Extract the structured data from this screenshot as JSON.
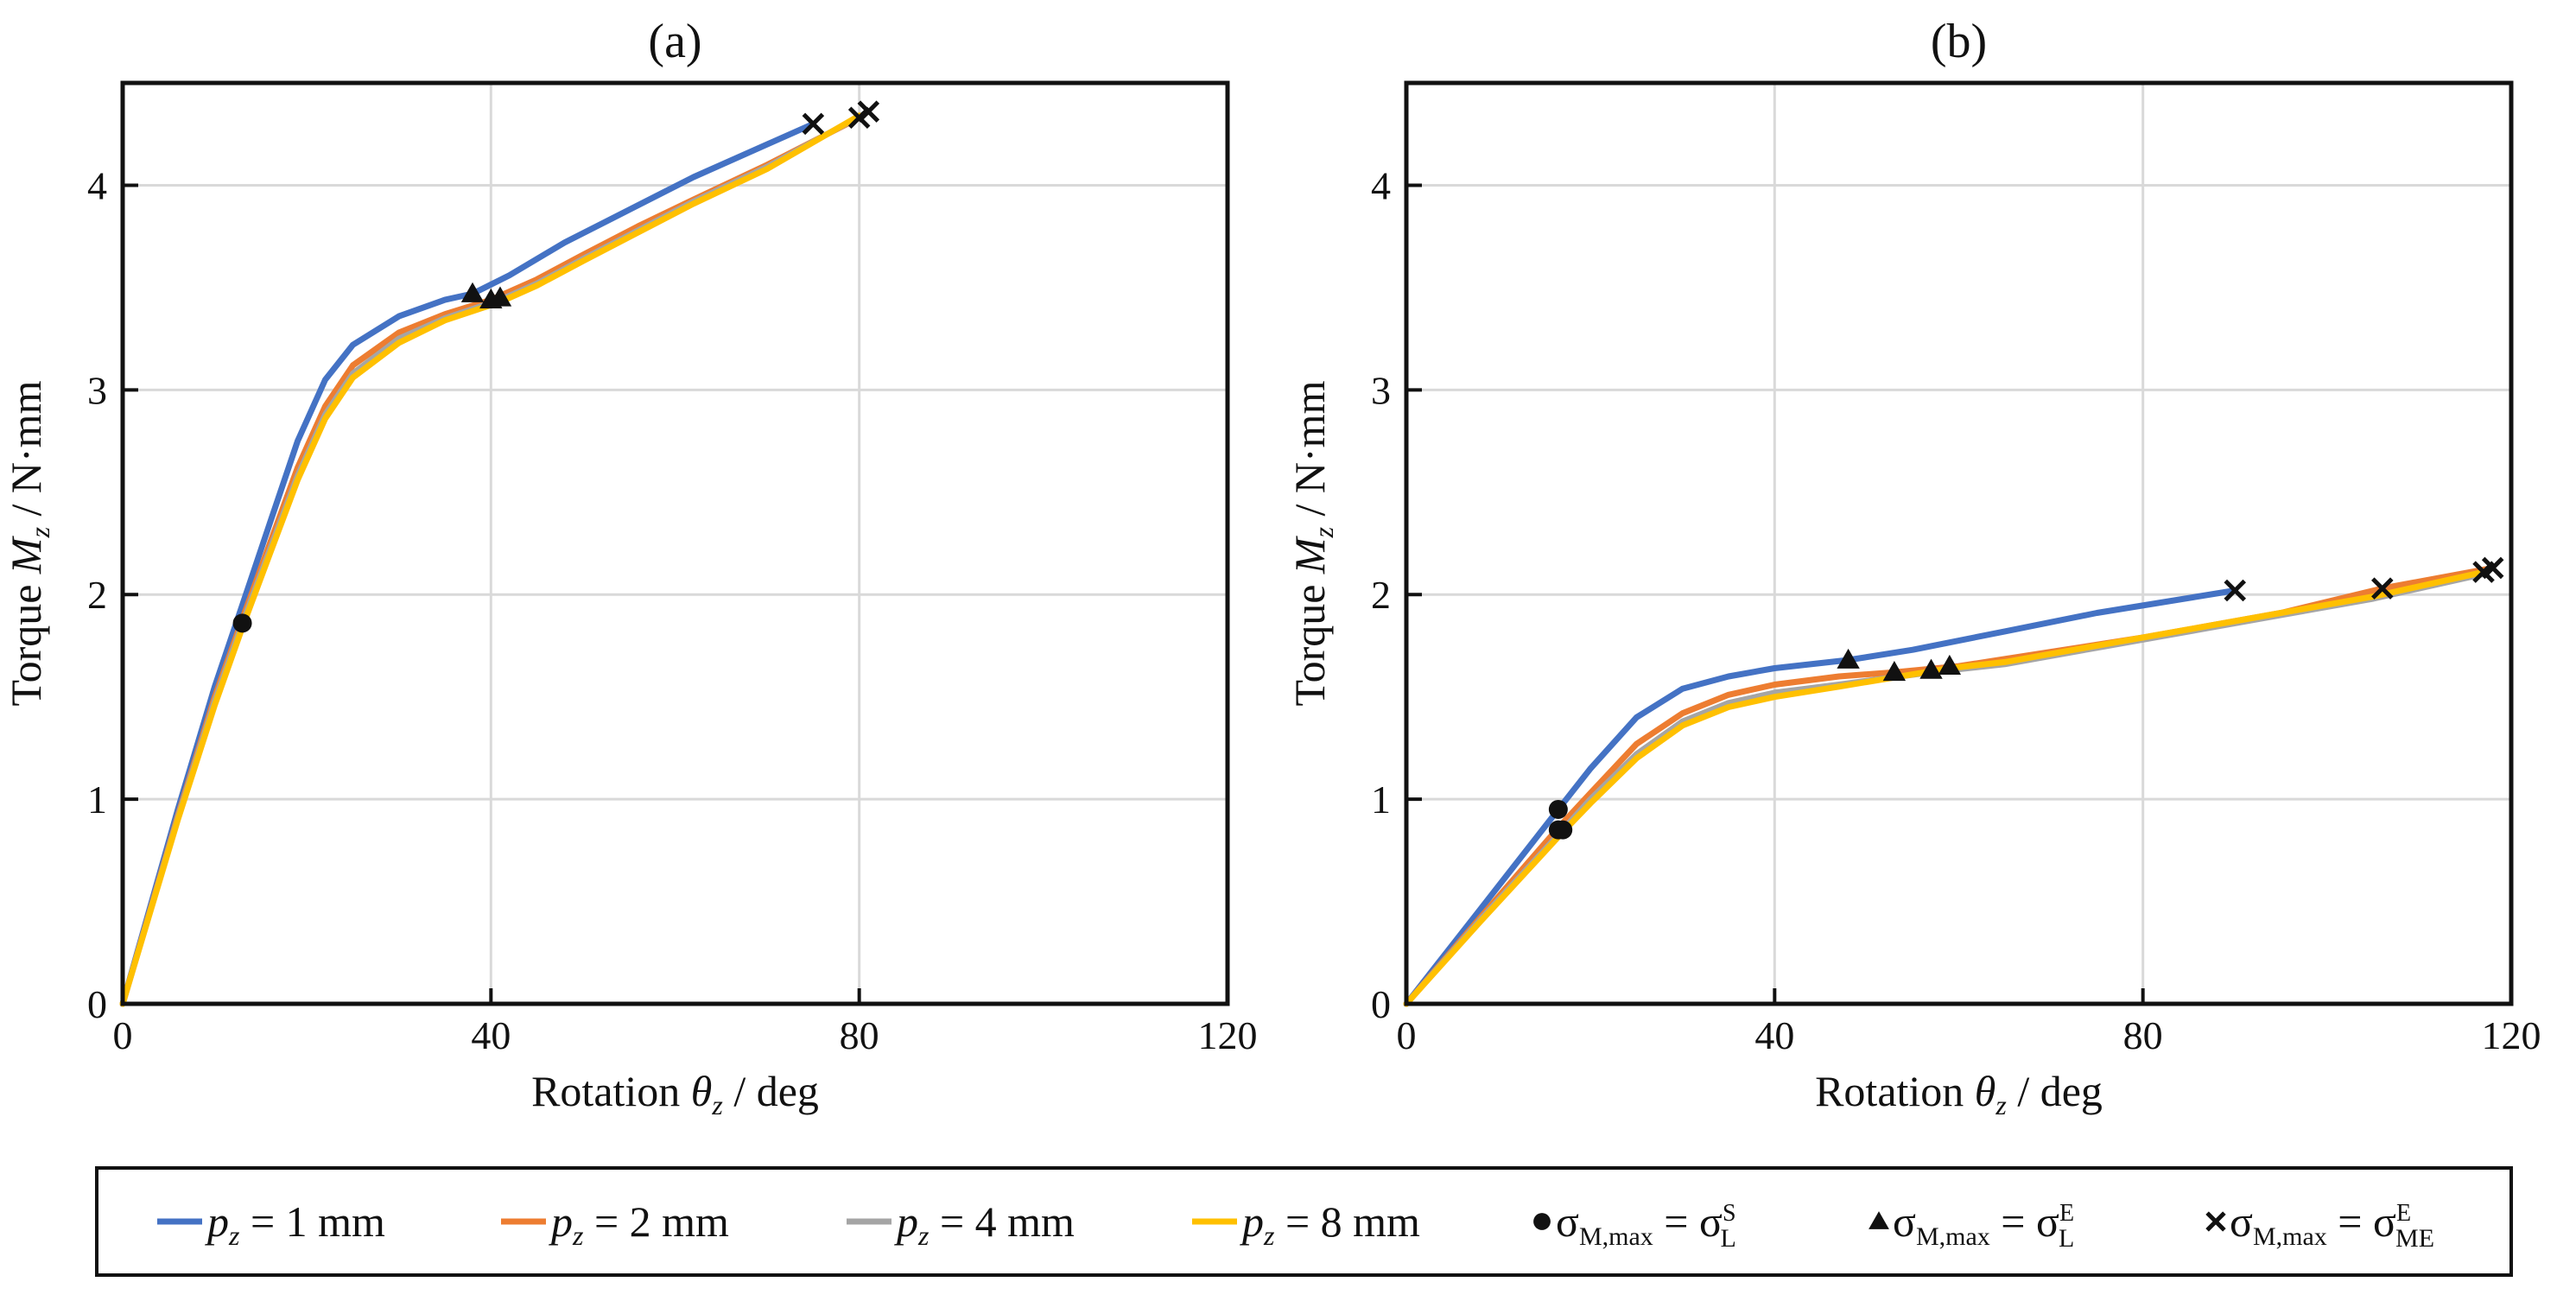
{
  "chart_data": [
    {
      "type": "line",
      "title": "(a)",
      "xlabel_prefix": "Rotation",
      "xlabel_var": "θ",
      "xlabel_sub": "z",
      "xlabel_unit": "/ deg",
      "ylabel_prefix": "Torque",
      "ylabel_var": "M",
      "ylabel_sub": "z",
      "ylabel_unit": "/ N·mm",
      "xlim": [
        0,
        120
      ],
      "ylim": [
        0,
        4.5
      ],
      "xticks": [
        0,
        40,
        80,
        120
      ],
      "yticks": [
        0,
        1,
        2,
        3,
        4
      ],
      "grid": true,
      "series": [
        {
          "name": "p_z = 1 mm",
          "color": "#4472C4",
          "x": [
            0,
            6,
            10,
            13,
            16,
            19,
            22,
            25,
            30,
            35,
            38,
            42,
            48,
            55,
            62,
            70,
            75
          ],
          "y": [
            0,
            0.95,
            1.55,
            1.95,
            2.35,
            2.75,
            3.05,
            3.22,
            3.36,
            3.44,
            3.47,
            3.56,
            3.72,
            3.88,
            4.04,
            4.2,
            4.3
          ]
        },
        {
          "name": "p_z = 2 mm",
          "color": "#ED7D31",
          "x": [
            0,
            6,
            10,
            13,
            16,
            19,
            22,
            25,
            30,
            35,
            40,
            45,
            50,
            56,
            62,
            70,
            80
          ],
          "y": [
            0,
            0.92,
            1.5,
            1.88,
            2.25,
            2.62,
            2.92,
            3.12,
            3.28,
            3.37,
            3.44,
            3.54,
            3.66,
            3.8,
            3.93,
            4.1,
            4.33
          ]
        },
        {
          "name": "p_z = 4 mm",
          "color": "#A5A5A5",
          "x": [
            0,
            6,
            10,
            13,
            16,
            19,
            22,
            25,
            30,
            35,
            41,
            45,
            50,
            56,
            62,
            70,
            81
          ],
          "y": [
            0,
            0.91,
            1.48,
            1.86,
            2.22,
            2.58,
            2.88,
            3.08,
            3.25,
            3.35,
            3.44,
            3.52,
            3.64,
            3.78,
            3.92,
            4.09,
            4.36
          ]
        },
        {
          "name": "p_z = 8 mm",
          "color": "#FFC000",
          "x": [
            0,
            6,
            10,
            13,
            16,
            19,
            22,
            25,
            30,
            35,
            41,
            45,
            50,
            56,
            62,
            70,
            80
          ],
          "y": [
            0,
            0.9,
            1.46,
            1.84,
            2.2,
            2.56,
            2.86,
            3.06,
            3.23,
            3.34,
            3.43,
            3.51,
            3.63,
            3.77,
            3.91,
            4.08,
            4.34
          ]
        }
      ],
      "markers": {
        "circle": [
          [
            13,
            1.86
          ]
        ],
        "triangle": [
          [
            38,
            3.47
          ],
          [
            40,
            3.44
          ],
          [
            41,
            3.45
          ]
        ],
        "cross": [
          [
            75,
            4.3
          ],
          [
            80,
            4.33
          ],
          [
            81,
            4.36
          ]
        ]
      }
    },
    {
      "type": "line",
      "title": "(b)",
      "xlabel_prefix": "Rotation",
      "xlabel_var": "θ",
      "xlabel_sub": "z",
      "xlabel_unit": "/ deg",
      "ylabel_prefix": "Torque",
      "ylabel_var": "M",
      "ylabel_sub": "z",
      "ylabel_unit": "/ N·mm",
      "xlim": [
        0,
        120
      ],
      "ylim": [
        0,
        4.5
      ],
      "xticks": [
        0,
        40,
        80,
        120
      ],
      "yticks": [
        0,
        1,
        2,
        3,
        4
      ],
      "grid": true,
      "series": [
        {
          "name": "p_z = 1 mm",
          "color": "#4472C4",
          "x": [
            0,
            8,
            16.5,
            20,
            25,
            30,
            35,
            40,
            48,
            55,
            65,
            75,
            90
          ],
          "y": [
            0,
            0.46,
            0.95,
            1.15,
            1.4,
            1.54,
            1.6,
            1.64,
            1.68,
            1.73,
            1.82,
            1.91,
            2.02
          ]
        },
        {
          "name": "p_z = 2 mm",
          "color": "#ED7D31",
          "x": [
            0,
            8,
            16.5,
            20,
            25,
            30,
            35,
            40,
            47,
            53,
            60,
            70,
            80,
            95,
            106,
            118
          ],
          "y": [
            0,
            0.42,
            0.86,
            1.03,
            1.27,
            1.42,
            1.51,
            1.56,
            1.6,
            1.62,
            1.65,
            1.72,
            1.79,
            1.91,
            2.03,
            2.13
          ]
        },
        {
          "name": "p_z = 4 mm",
          "color": "#A5A5A5",
          "x": [
            0,
            8,
            17,
            20,
            25,
            30,
            35,
            40,
            47,
            57,
            65,
            75,
            85,
            95,
            105,
            117
          ],
          "y": [
            0,
            0.41,
            0.85,
            1.0,
            1.22,
            1.38,
            1.47,
            1.52,
            1.56,
            1.62,
            1.66,
            1.74,
            1.82,
            1.9,
            1.98,
            2.1
          ]
        },
        {
          "name": "p_z = 8 mm",
          "color": "#FFC000",
          "x": [
            0,
            8,
            17,
            20,
            25,
            30,
            35,
            40,
            47,
            59,
            65,
            75,
            85,
            95,
            105,
            117
          ],
          "y": [
            0,
            0.4,
            0.84,
            0.98,
            1.2,
            1.36,
            1.45,
            1.5,
            1.55,
            1.64,
            1.67,
            1.75,
            1.83,
            1.91,
            1.99,
            2.11
          ]
        }
      ],
      "markers": {
        "circle": [
          [
            16.5,
            0.95
          ],
          [
            16.5,
            0.85
          ],
          [
            17,
            0.85
          ]
        ],
        "triangle": [
          [
            48,
            1.68
          ],
          [
            53,
            1.62
          ],
          [
            57,
            1.63
          ],
          [
            59,
            1.65
          ]
        ],
        "cross": [
          [
            90,
            2.02
          ],
          [
            106,
            2.03
          ],
          [
            117,
            2.11
          ],
          [
            118,
            2.13
          ]
        ]
      }
    }
  ],
  "legend": {
    "items": [
      {
        "kind": "line",
        "color": "#4472C4",
        "var": "p",
        "sub": "z",
        "text": " = 1 mm"
      },
      {
        "kind": "line",
        "color": "#ED7D31",
        "var": "p",
        "sub": "z",
        "text": " = 2 mm"
      },
      {
        "kind": "line",
        "color": "#A5A5A5",
        "var": "p",
        "sub": "z",
        "text": " = 4 mm"
      },
      {
        "kind": "line",
        "color": "#FFC000",
        "var": "p",
        "sub": "z",
        "text": " = 8 mm"
      },
      {
        "kind": "circle",
        "lhs": "σ",
        "lhs_sub": "M,max",
        "eq": " = σ",
        "rhs_sup": "S",
        "rhs_sub": "L"
      },
      {
        "kind": "triangle",
        "lhs": "σ",
        "lhs_sub": "M,max",
        "eq": " = σ",
        "rhs_sup": "E",
        "rhs_sub": "L"
      },
      {
        "kind": "cross",
        "lhs": "σ",
        "lhs_sub": "M,max",
        "eq": " = σ",
        "rhs_sup": "E",
        "rhs_sub": "ME"
      }
    ]
  }
}
